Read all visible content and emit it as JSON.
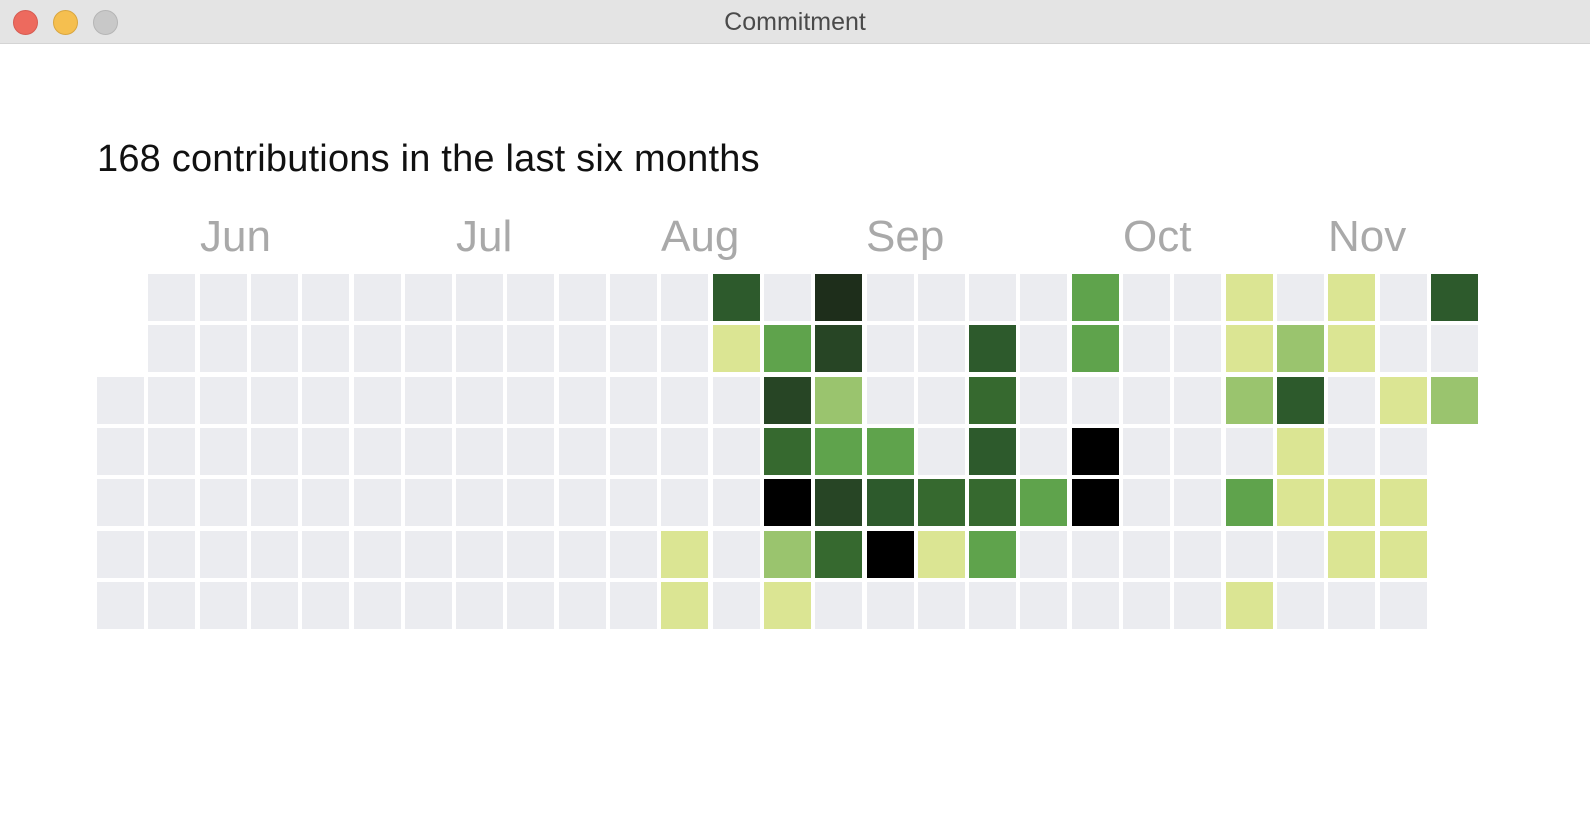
{
  "window": {
    "title": "Commitment"
  },
  "summary": "168 contributions in the last six months",
  "months": [
    "Jun",
    "Jul",
    "Aug",
    "Sep",
    "Oct",
    "Nov"
  ],
  "colors": {
    "0": "#ebecf0",
    "1": "#dbe593",
    "2": "#9ac46e",
    "3": "#5fa34c",
    "4": "#36692f",
    "5": "#2d5a2c",
    "6": "#274525",
    "7": "#1e2e1b",
    "8": "#000000"
  },
  "chart_data": {
    "type": "heatmap",
    "title": "168 contributions in the last six months",
    "rows_are_weekdays": true,
    "x_month_labels": [
      "Jun",
      "Jul",
      "Aug",
      "Sep",
      "Oct",
      "Nov"
    ],
    "levels": [
      [
        -1,
        0,
        0,
        0,
        0,
        0,
        0,
        0,
        0,
        0,
        0,
        0,
        5,
        0,
        7,
        0,
        0,
        0,
        0,
        3,
        0,
        0,
        1,
        0,
        1,
        0,
        5
      ],
      [
        -1,
        0,
        0,
        0,
        0,
        0,
        0,
        0,
        0,
        0,
        0,
        0,
        1,
        3,
        6,
        0,
        0,
        5,
        0,
        3,
        0,
        0,
        1,
        2,
        1,
        0,
        0
      ],
      [
        0,
        0,
        0,
        0,
        0,
        0,
        0,
        0,
        0,
        0,
        0,
        0,
        0,
        6,
        2,
        0,
        0,
        4,
        0,
        0,
        0,
        0,
        2,
        5,
        0,
        1,
        2
      ],
      [
        0,
        0,
        0,
        0,
        0,
        0,
        0,
        0,
        0,
        0,
        0,
        0,
        0,
        4,
        3,
        3,
        0,
        5,
        0,
        8,
        0,
        0,
        0,
        1,
        0,
        0,
        -1
      ],
      [
        0,
        0,
        0,
        0,
        0,
        0,
        0,
        0,
        0,
        0,
        0,
        0,
        0,
        8,
        6,
        5,
        4,
        4,
        3,
        8,
        0,
        0,
        3,
        1,
        1,
        1,
        -1
      ],
      [
        0,
        0,
        0,
        0,
        0,
        0,
        0,
        0,
        0,
        0,
        0,
        1,
        0,
        2,
        4,
        8,
        1,
        3,
        0,
        0,
        0,
        0,
        0,
        0,
        1,
        1,
        -1
      ],
      [
        0,
        0,
        0,
        0,
        0,
        0,
        0,
        0,
        0,
        0,
        0,
        1,
        0,
        1,
        0,
        0,
        0,
        0,
        0,
        0,
        0,
        0,
        1,
        0,
        0,
        0,
        -1
      ]
    ]
  }
}
